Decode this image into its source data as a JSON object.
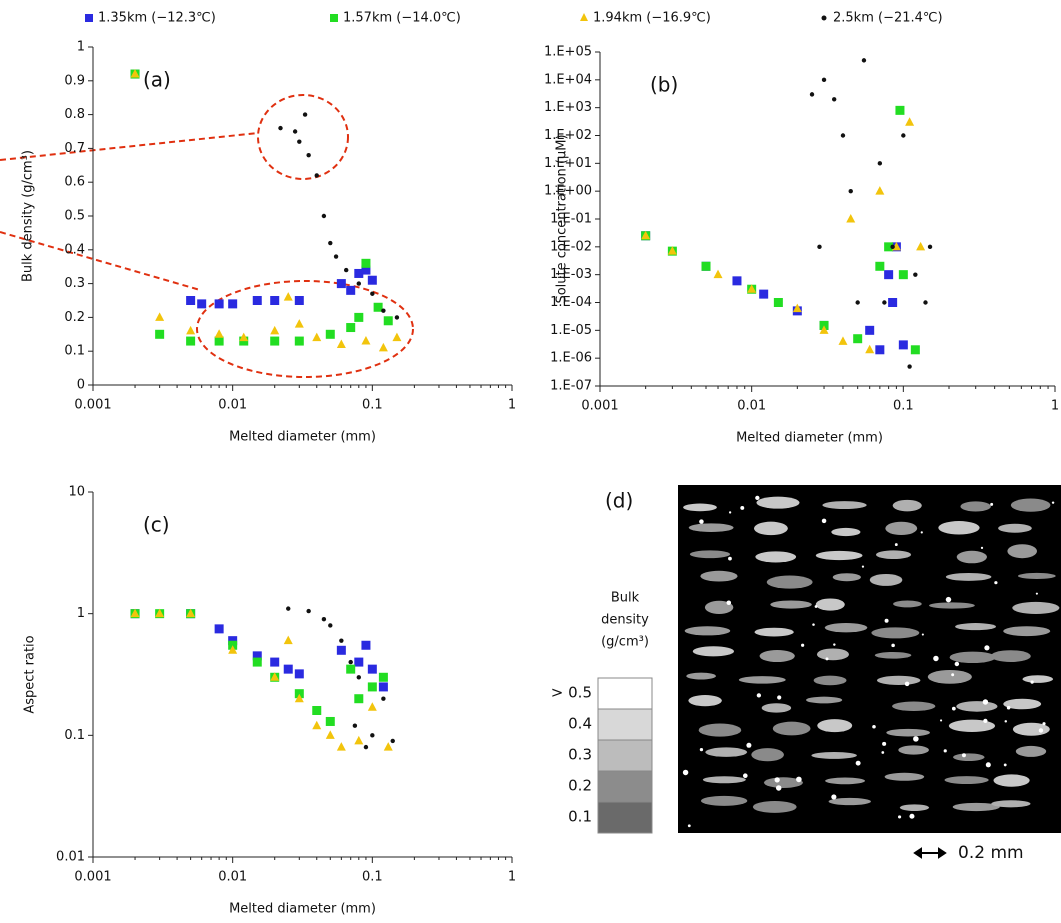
{
  "chart_data": [
    {
      "type": "scatter",
      "annotation": "(a)",
      "x_label": "Melted diameter (mm)",
      "y_label": "Bulk density (g/cm³)",
      "xscale": "log",
      "xlim": [
        0.001,
        1
      ],
      "xticks": [
        0.001,
        0.01,
        0.1,
        1
      ],
      "ylim": [
        0,
        1
      ],
      "yticks": [
        0,
        0.1,
        0.2,
        0.3,
        0.4,
        0.5,
        0.6,
        0.7,
        0.8,
        0.9,
        1
      ],
      "series": [
        {
          "name": "1.35km (−12.3℃)",
          "color": "#2a2ae0",
          "marker": "square",
          "x": [
            0.002,
            0.005,
            0.006,
            0.008,
            0.01,
            0.015,
            0.02,
            0.03,
            0.06,
            0.07,
            0.08,
            0.09,
            0.1
          ],
          "values": [
            0.92,
            0.25,
            0.24,
            0.24,
            0.24,
            0.25,
            0.25,
            0.25,
            0.3,
            0.28,
            0.33,
            0.34,
            0.31
          ]
        },
        {
          "name": "1.57km (−14.0℃)",
          "color": "#22dd22",
          "marker": "square",
          "x": [
            0.002,
            0.003,
            0.005,
            0.008,
            0.012,
            0.02,
            0.03,
            0.05,
            0.07,
            0.08,
            0.09,
            0.11,
            0.13
          ],
          "values": [
            0.92,
            0.15,
            0.13,
            0.13,
            0.13,
            0.13,
            0.13,
            0.15,
            0.17,
            0.2,
            0.36,
            0.23,
            0.19
          ]
        },
        {
          "name": "1.94km (−16.9℃)",
          "color": "#f2c40c",
          "marker": "triangle",
          "x": [
            0.002,
            0.003,
            0.005,
            0.008,
            0.012,
            0.02,
            0.025,
            0.03,
            0.04,
            0.06,
            0.09,
            0.12,
            0.15
          ],
          "values": [
            0.92,
            0.2,
            0.16,
            0.15,
            0.14,
            0.16,
            0.26,
            0.18,
            0.14,
            0.12,
            0.13,
            0.11,
            0.14
          ]
        },
        {
          "name": "2.5km (−21.4℃)",
          "color": "#111111",
          "marker": "circle",
          "x": [
            0.022,
            0.028,
            0.03,
            0.033,
            0.035,
            0.04,
            0.045,
            0.05,
            0.055,
            0.065,
            0.08,
            0.1,
            0.12,
            0.15
          ],
          "values": [
            0.76,
            0.75,
            0.72,
            0.8,
            0.68,
            0.62,
            0.5,
            0.42,
            0.38,
            0.34,
            0.3,
            0.27,
            0.22,
            0.2
          ]
        }
      ]
    },
    {
      "type": "scatter",
      "annotation": "(b)",
      "x_label": "Melted diameter (mm)",
      "y_label": "Solute concentration (μM)",
      "xscale": "log",
      "yscale": "log",
      "xlim": [
        0.001,
        1
      ],
      "xticks": [
        0.001,
        0.01,
        0.1,
        1
      ],
      "ylim": [
        1e-07,
        100000
      ],
      "yticks": [
        {
          "value": 1e-07,
          "label": "1.E-07"
        },
        {
          "value": 1e-06,
          "label": "1.E-06"
        },
        {
          "value": 1e-05,
          "label": "1.E-05"
        },
        {
          "value": 0.0001,
          "label": "1.E-04"
        },
        {
          "value": 0.001,
          "label": "1.E-03"
        },
        {
          "value": 0.01,
          "label": "1.E-02"
        },
        {
          "value": 0.1,
          "label": "1.E-01"
        },
        {
          "value": 1,
          "label": "1.E+00"
        },
        {
          "value": 10,
          "label": "1.E+01"
        },
        {
          "value": 100,
          "label": "1.E+02"
        },
        {
          "value": 1000,
          "label": "1.E+03"
        },
        {
          "value": 10000,
          "label": "1.E+04"
        },
        {
          "value": 100000,
          "label": "1.E+05"
        }
      ],
      "series": [
        {
          "color": "#2a2ae0",
          "marker": "square",
          "x": [
            0.002,
            0.005,
            0.008,
            0.012,
            0.02,
            0.03,
            0.06,
            0.07,
            0.08,
            0.085,
            0.09,
            0.1
          ],
          "values": [
            0.025,
            0.002,
            0.0006,
            0.0002,
            5e-05,
            1.5e-05,
            1e-05,
            2e-06,
            0.001,
            0.0001,
            0.01,
            3e-06
          ]
        },
        {
          "color": "#22dd22",
          "marker": "square",
          "x": [
            0.002,
            0.003,
            0.005,
            0.01,
            0.015,
            0.03,
            0.05,
            0.07,
            0.08,
            0.095,
            0.1,
            0.12
          ],
          "values": [
            0.025,
            0.007,
            0.002,
            0.0003,
            0.0001,
            1.5e-05,
            5e-06,
            0.002,
            0.01,
            800,
            0.001,
            2e-06
          ]
        },
        {
          "color": "#f2c40c",
          "marker": "triangle",
          "x": [
            0.002,
            0.003,
            0.006,
            0.01,
            0.02,
            0.03,
            0.04,
            0.06,
            0.045,
            0.07,
            0.09,
            0.11,
            0.13
          ],
          "values": [
            0.025,
            0.007,
            0.001,
            0.0003,
            6e-05,
            1e-05,
            4e-06,
            2e-06,
            0.1,
            1,
            0.01,
            300,
            0.01
          ]
        },
        {
          "color": "#111111",
          "marker": "circle",
          "x": [
            0.025,
            0.03,
            0.035,
            0.04,
            0.028,
            0.045,
            0.055,
            0.05,
            0.07,
            0.075,
            0.085,
            0.1,
            0.12,
            0.14,
            0.15,
            0.11
          ],
          "values": [
            3000,
            10000,
            2000,
            100,
            0.01,
            1,
            50000,
            0.0001,
            10,
            0.0001,
            0.01,
            100,
            0.001,
            0.0001,
            0.01,
            5e-07
          ]
        }
      ]
    },
    {
      "type": "scatter",
      "annotation": "(c)",
      "x_label": "Melted diameter (mm)",
      "y_label": "Aspect ratio",
      "xscale": "log",
      "yscale": "log",
      "xlim": [
        0.001,
        1
      ],
      "xticks": [
        0.001,
        0.01,
        0.1,
        1
      ],
      "ylim": [
        0.01,
        10
      ],
      "yticks": [
        0.01,
        0.1,
        1,
        10
      ],
      "series": [
        {
          "color": "#2a2ae0",
          "marker": "square",
          "x": [
            0.002,
            0.005,
            0.008,
            0.01,
            0.015,
            0.02,
            0.025,
            0.03,
            0.06,
            0.08,
            0.09,
            0.1,
            0.12
          ],
          "values": [
            1,
            1,
            0.75,
            0.6,
            0.45,
            0.4,
            0.35,
            0.32,
            0.5,
            0.4,
            0.55,
            0.35,
            0.25
          ]
        },
        {
          "color": "#22dd22",
          "marker": "square",
          "x": [
            0.002,
            0.003,
            0.005,
            0.01,
            0.015,
            0.02,
            0.03,
            0.04,
            0.05,
            0.07,
            0.08,
            0.1,
            0.12
          ],
          "values": [
            1,
            1,
            1,
            0.55,
            0.4,
            0.3,
            0.22,
            0.16,
            0.13,
            0.35,
            0.2,
            0.25,
            0.3
          ]
        },
        {
          "color": "#f2c40c",
          "marker": "triangle",
          "x": [
            0.002,
            0.003,
            0.005,
            0.01,
            0.02,
            0.025,
            0.03,
            0.04,
            0.05,
            0.06,
            0.08,
            0.1,
            0.13
          ],
          "values": [
            1,
            1,
            1,
            0.5,
            0.3,
            0.6,
            0.2,
            0.12,
            0.1,
            0.08,
            0.09,
            0.17,
            0.08
          ]
        },
        {
          "color": "#111111",
          "marker": "circle",
          "x": [
            0.025,
            0.035,
            0.045,
            0.05,
            0.06,
            0.07,
            0.08,
            0.075,
            0.09,
            0.1,
            0.12,
            0.14
          ],
          "values": [
            1.1,
            1.05,
            0.9,
            0.8,
            0.6,
            0.4,
            0.3,
            0.12,
            0.08,
            0.1,
            0.2,
            0.09
          ]
        }
      ]
    }
  ],
  "panel_d": {
    "label": "(d)",
    "legend_title": [
      "Bulk",
      "density",
      "(g/cm³)"
    ],
    "levels": [
      {
        "label": "> 0.5",
        "color": "#ffffff"
      },
      {
        "label": "0.4",
        "color": "#d8d8d8"
      },
      {
        "label": "0.3",
        "color": "#bcbcbc"
      },
      {
        "label": "0.2",
        "color": "#8c8c8c"
      },
      {
        "label": "0.1",
        "color": "#6a6a6a"
      }
    ],
    "scale": "0.2 mm"
  }
}
